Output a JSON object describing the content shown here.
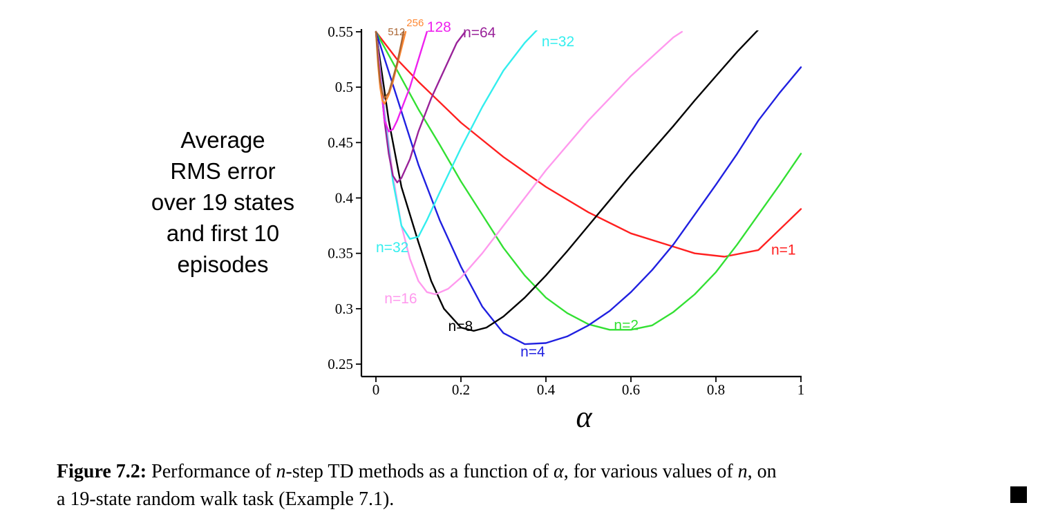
{
  "chart_data": {
    "type": "line",
    "xlabel": "α",
    "ylabel_lines": [
      "Average",
      "RMS error",
      "over 19 states",
      "and first 10",
      "episodes"
    ],
    "xlim": [
      0,
      1
    ],
    "ylim": [
      0.25,
      0.55
    ],
    "x_ticks": [
      "0",
      "0.2",
      "0.4",
      "0.6",
      "0.8",
      "1"
    ],
    "y_ticks": [
      "0.25",
      "0.3",
      "0.35",
      "0.4",
      "0.45",
      "0.5",
      "0.55"
    ],
    "grid": false,
    "series": [
      {
        "name": "n=1",
        "color": "#ff2020",
        "label": "n=1",
        "x": [
          0,
          0.05,
          0.1,
          0.2,
          0.3,
          0.4,
          0.5,
          0.6,
          0.7,
          0.75,
          0.82,
          0.9,
          1.0
        ],
        "y": [
          0.55,
          0.525,
          0.505,
          0.468,
          0.437,
          0.41,
          0.387,
          0.368,
          0.356,
          0.35,
          0.347,
          0.353,
          0.39
        ]
      },
      {
        "name": "n=2",
        "color": "#33e033",
        "label": "n=2",
        "x": [
          0,
          0.05,
          0.1,
          0.15,
          0.2,
          0.25,
          0.3,
          0.35,
          0.4,
          0.45,
          0.5,
          0.55,
          0.6,
          0.65,
          0.7,
          0.75,
          0.8,
          0.85,
          0.9,
          0.95,
          1.0
        ],
        "y": [
          0.55,
          0.515,
          0.48,
          0.448,
          0.415,
          0.385,
          0.355,
          0.33,
          0.31,
          0.296,
          0.286,
          0.281,
          0.281,
          0.285,
          0.297,
          0.313,
          0.333,
          0.358,
          0.385,
          0.412,
          0.44
        ]
      },
      {
        "name": "n=4",
        "color": "#2020e0",
        "label": "n=4",
        "x": [
          0,
          0.05,
          0.1,
          0.15,
          0.2,
          0.25,
          0.3,
          0.35,
          0.4,
          0.45,
          0.5,
          0.55,
          0.6,
          0.65,
          0.7,
          0.75,
          0.8,
          0.85,
          0.9,
          0.95,
          1.0
        ],
        "y": [
          0.55,
          0.49,
          0.43,
          0.38,
          0.338,
          0.302,
          0.278,
          0.268,
          0.269,
          0.275,
          0.285,
          0.298,
          0.315,
          0.335,
          0.358,
          0.385,
          0.412,
          0.44,
          0.47,
          0.495,
          0.518
        ]
      },
      {
        "name": "n=8",
        "color": "#000000",
        "label": "n=8",
        "x": [
          0,
          0.03,
          0.06,
          0.1,
          0.13,
          0.16,
          0.2,
          0.23,
          0.26,
          0.3,
          0.35,
          0.4,
          0.45,
          0.5,
          0.55,
          0.6,
          0.65,
          0.7,
          0.75,
          0.8,
          0.85,
          0.9,
          0.95,
          0.97
        ],
        "y": [
          0.55,
          0.47,
          0.41,
          0.36,
          0.325,
          0.3,
          0.283,
          0.28,
          0.283,
          0.293,
          0.31,
          0.33,
          0.352,
          0.375,
          0.398,
          0.421,
          0.443,
          0.465,
          0.488,
          0.51,
          0.532,
          0.552,
          0.568,
          0.572
        ]
      },
      {
        "name": "n=16",
        "color": "#ff99ee",
        "label": "n=16",
        "x": [
          0,
          0.02,
          0.04,
          0.06,
          0.08,
          0.1,
          0.12,
          0.14,
          0.17,
          0.2,
          0.25,
          0.3,
          0.35,
          0.4,
          0.5,
          0.6,
          0.7,
          0.72
        ],
        "y": [
          0.55,
          0.48,
          0.42,
          0.375,
          0.345,
          0.325,
          0.315,
          0.313,
          0.318,
          0.328,
          0.35,
          0.375,
          0.4,
          0.425,
          0.47,
          0.51,
          0.545,
          0.55
        ]
      },
      {
        "name": "n=32",
        "color": "#33eeee",
        "label": "n=32",
        "x": [
          0,
          0.02,
          0.04,
          0.06,
          0.08,
          0.1,
          0.12,
          0.15,
          0.2,
          0.25,
          0.3,
          0.35,
          0.4,
          0.43
        ],
        "y": [
          0.55,
          0.475,
          0.415,
          0.375,
          0.363,
          0.365,
          0.38,
          0.405,
          0.445,
          0.482,
          0.515,
          0.54,
          0.56,
          0.57
        ]
      },
      {
        "name": "n=64",
        "color": "#992299",
        "label": "n=64",
        "x": [
          0,
          0.01,
          0.02,
          0.03,
          0.04,
          0.05,
          0.06,
          0.08,
          0.1,
          0.13,
          0.16,
          0.19,
          0.21
        ],
        "y": [
          0.55,
          0.51,
          0.47,
          0.44,
          0.42,
          0.414,
          0.418,
          0.435,
          0.46,
          0.49,
          0.515,
          0.54,
          0.55
        ]
      },
      {
        "name": "128",
        "color": "#ee22ee",
        "label": "128",
        "x": [
          0,
          0.01,
          0.02,
          0.03,
          0.04,
          0.05,
          0.06,
          0.08,
          0.1,
          0.12
        ],
        "y": [
          0.55,
          0.51,
          0.47,
          0.46,
          0.462,
          0.47,
          0.48,
          0.5,
          0.525,
          0.55
        ]
      },
      {
        "name": "256",
        "color": "#ff8833",
        "label": "256",
        "x": [
          0,
          0.005,
          0.01,
          0.015,
          0.02,
          0.03,
          0.04,
          0.05,
          0.06,
          0.07
        ],
        "y": [
          0.55,
          0.52,
          0.5,
          0.488,
          0.485,
          0.493,
          0.505,
          0.52,
          0.535,
          0.55
        ]
      },
      {
        "name": "512",
        "color": "#aa6633",
        "label": "512",
        "x": [
          0,
          0.005,
          0.01,
          0.015,
          0.02,
          0.03,
          0.04,
          0.05,
          0.06,
          0.065
        ],
        "y": [
          0.55,
          0.525,
          0.505,
          0.495,
          0.49,
          0.495,
          0.508,
          0.522,
          0.54,
          0.55
        ]
      }
    ],
    "labels": [
      {
        "text": "n=1",
        "x": 0.93,
        "y": 0.349,
        "color": "#ff2020"
      },
      {
        "text": "n=2",
        "x": 0.56,
        "y": 0.281,
        "color": "#33e033"
      },
      {
        "text": "n=4",
        "x": 0.34,
        "y": 0.257,
        "color": "#2020e0"
      },
      {
        "text": "n=8",
        "x": 0.17,
        "y": 0.28,
        "color": "#000000"
      },
      {
        "text": "n=16",
        "x": 0.02,
        "y": 0.305,
        "color": "#ff99ee"
      },
      {
        "text": "n=32",
        "x": 0.0,
        "y": 0.351,
        "color": "#33eeee"
      },
      {
        "text": "n=32",
        "x": 0.39,
        "y": 0.537,
        "color": "#33eeee"
      },
      {
        "text": "n=64",
        "x": 0.205,
        "y": 0.545,
        "color": "#992299"
      },
      {
        "text": "128",
        "x": 0.12,
        "y": 0.55,
        "color": "#ee22ee"
      },
      {
        "text": "256",
        "x": 0.072,
        "y": 0.555,
        "color": "#ff8833",
        "small": true
      },
      {
        "text": "512",
        "x": 0.028,
        "y": 0.547,
        "color": "#aa6633",
        "small": true
      }
    ]
  },
  "caption": {
    "label": "Figure 7.2:",
    "text_part1": " Performance of ",
    "n1": "n",
    "text_part2": "-step TD methods as a function of ",
    "alpha": "α",
    "text_part3": ", for various values of ",
    "n2": "n",
    "text_part4": ", on",
    "line2": "a 19-state random walk task (Example 7.1)."
  }
}
